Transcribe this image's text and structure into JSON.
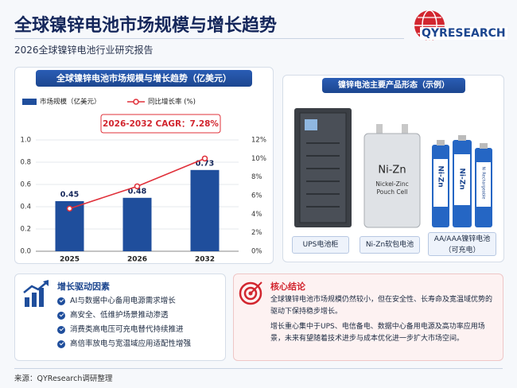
{
  "header": {
    "title": "全球镍锌电池市场规模与增长趋势",
    "subtitle": "2026全球镍锌电池行业研究报告",
    "logo": "QYRESEARCH"
  },
  "chart_data": {
    "type": "bar",
    "title": "全球镍锌电池市场规模与增长趋势（亿美元）",
    "categories": [
      "2025",
      "2026",
      "2032"
    ],
    "series": [
      {
        "name": "市场规模（亿美元）",
        "color": "#1f4e9c",
        "values": [
          0.45,
          0.48,
          0.73
        ]
      },
      {
        "name": "同比增长率 (%)",
        "color": "#e0303a",
        "type": "line",
        "axis": "y2",
        "values": [
          4.6,
          7.0,
          10.0
        ]
      }
    ],
    "annotation": "2026-2032 CAGR：7.28%",
    "ylim": [
      0,
      1.0
    ],
    "yticks": [
      {
        "value": 0,
        "label": "0.0"
      },
      0.2,
      0.4,
      0.6,
      0.8,
      {
        "value": 1,
        "label": "1.0"
      }
    ],
    "y2lim": [
      0,
      12
    ],
    "y2ticks": [
      {
        "value": 0,
        "label": "0%"
      },
      {
        "value": 2,
        "label": "2%"
      },
      {
        "value": 4,
        "label": "4%"
      },
      {
        "value": 6,
        "label": "6%"
      },
      {
        "value": 8,
        "label": "8%"
      },
      {
        "value": 10,
        "label": "10%"
      },
      {
        "value": 12,
        "label": "12%"
      }
    ],
    "grid": true
  },
  "products": {
    "title": "镍锌电池主要产品形态（示例）",
    "items": [
      "UPS电池柜",
      "Ni-Zn软包电池",
      "AA/AAA镍锌电池",
      "（可充电）"
    ],
    "pouch_text": [
      "Ni-Zn",
      "Nickel-Zinc",
      "Pouch Cell"
    ],
    "battery_text": [
      "Ni-Zn",
      "Ni Rechargeable"
    ]
  },
  "drivers": {
    "title": "增长驱动因素",
    "items": [
      "AI与数据中心备用电源需求增长",
      "高安全、低维护场景推动渗透",
      "消费类高电压可充电替代持续推进",
      "高倍率放电与宽温域应用适配性增强"
    ]
  },
  "conclusion": {
    "title": "核心结论",
    "paragraphs": [
      "全球镍锌电池市场规模仍然较小，但在安全性、长寿命及宽温域优势的驱动下保持稳步增长。",
      "增长重心集中于UPS、电信备电、数据中心备用电源及高功率应用场景，未来有望随着技术进步与成本优化进一步扩大市场空间。"
    ]
  },
  "source": "来源：QYResearch调研整理"
}
